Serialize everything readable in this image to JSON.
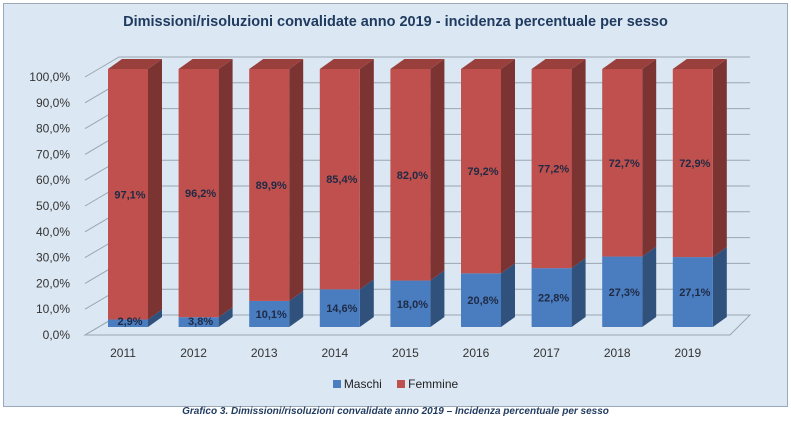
{
  "chart_data": {
    "type": "bar",
    "stacked": true,
    "three_d": true,
    "title": "Dimissioni/risoluzioni convalidate anno 2019 -  incidenza percentuale per sesso",
    "categories": [
      "2011",
      "2012",
      "2013",
      "2014",
      "2015",
      "2016",
      "2017",
      "2018",
      "2019"
    ],
    "series": [
      {
        "name": "Maschi",
        "color": "#4a7dc0",
        "values": [
          2.9,
          3.8,
          10.1,
          14.6,
          18.0,
          20.8,
          22.8,
          27.3,
          27.1
        ],
        "labels": [
          "2,9%",
          "3,8%",
          "10,1%",
          "14,6%",
          "18,0%",
          "20,8%",
          "22,8%",
          "27,3%",
          "27,1%"
        ]
      },
      {
        "name": "Femmine",
        "color": "#c0504d",
        "values": [
          97.1,
          96.2,
          89.9,
          85.4,
          82.0,
          79.2,
          77.2,
          72.7,
          72.9
        ],
        "labels": [
          "97,1%",
          "96,2%",
          "89,9%",
          "85,4%",
          "82,0%",
          "79,2%",
          "77,2%",
          "72,7%",
          "72,9%"
        ]
      }
    ],
    "yticks": [
      "0,0%",
      "10,0%",
      "20,0%",
      "30,0%",
      "40,0%",
      "50,0%",
      "60,0%",
      "70,0%",
      "80,0%",
      "90,0%",
      "100,0%"
    ],
    "ylim": [
      0,
      100
    ],
    "grid": true,
    "legend": "bottom"
  },
  "caption": "Grafico 3. Dimissioni/risoluzioni convalidate anno 2019 – Incidenza percentuale per sesso"
}
